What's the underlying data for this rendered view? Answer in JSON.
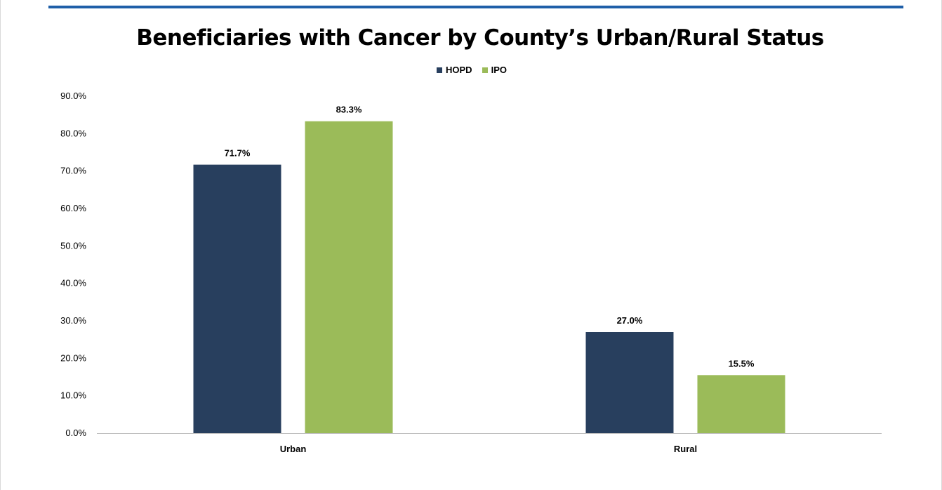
{
  "colors": {
    "accent_rule": "#1f5fa8",
    "axis": "#bfbfbf"
  },
  "chart_data": {
    "type": "bar",
    "title": "Beneficiaries with Cancer by County’s Urban/Rural Status",
    "xlabel": "",
    "ylabel": "",
    "categories": [
      "Urban",
      "Rural"
    ],
    "series": [
      {
        "name": "HOPD",
        "color": "#283f5e",
        "values": [
          71.7,
          27.0
        ],
        "labels": [
          "71.7%",
          "27.0%"
        ]
      },
      {
        "name": "IPO",
        "color": "#9bbb59",
        "values": [
          83.3,
          15.5
        ],
        "labels": [
          "83.3%",
          "15.5%"
        ]
      }
    ],
    "ylim": [
      0,
      90
    ],
    "yticks": [
      "0.0%",
      "10.0%",
      "20.0%",
      "30.0%",
      "40.0%",
      "50.0%",
      "60.0%",
      "70.0%",
      "80.0%",
      "90.0%"
    ],
    "grid": false,
    "legend": "top-center"
  }
}
